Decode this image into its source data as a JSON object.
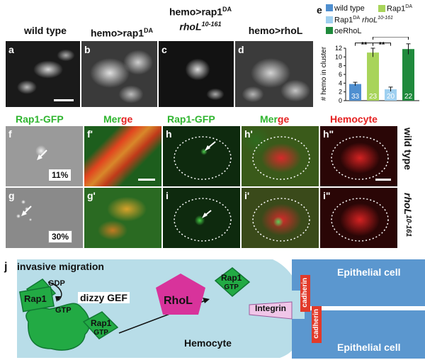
{
  "top_row": {
    "headers": [
      {
        "id": "wt",
        "text": "wild type"
      },
      {
        "id": "hemo_rap1",
        "text": "hemo>rap1",
        "sup": "DA"
      },
      {
        "id": "hemo_rap1_rhol_line1",
        "text": "hemo>rap1",
        "sup": "DA"
      },
      {
        "id": "hemo_rap1_rhol_line2",
        "text": "rhoL",
        "sup": "10-161"
      },
      {
        "id": "hemo_rhol",
        "text": "hemo>rhoL"
      }
    ],
    "panel_labels": [
      "a",
      "b",
      "c",
      "d"
    ]
  },
  "chart": {
    "panel_label": "e",
    "legend": [
      {
        "label": "wild type",
        "color": "#4f8fd0"
      },
      {
        "label": "Rap1",
        "sup": "DA",
        "color": "#a8d45a"
      },
      {
        "label": "Rap1",
        "sup": "DA",
        "italic": "rhoL",
        "sup2": "10-161",
        "color": "#9fd0f0"
      },
      {
        "label": "oeRhoL",
        "color": "#1f8a3c"
      }
    ],
    "significance": [
      "**",
      "**",
      "ns"
    ]
  },
  "chart_data": {
    "type": "bar",
    "categories": [
      "wild type",
      "Rap1DA",
      "Rap1DA rhoL10-161",
      "oeRhoL"
    ],
    "values": [
      3.8,
      11.0,
      2.6,
      11.8
    ],
    "errors": [
      0.4,
      1.0,
      0.5,
      1.2
    ],
    "n_labels": [
      "33",
      "23",
      "20",
      "22"
    ],
    "colors": [
      "#4f8fd0",
      "#a8d45a",
      "#9fd0f0",
      "#1f8a3c"
    ],
    "ylabel": "# hemo in cluster",
    "ylim": [
      0,
      12
    ],
    "yticks": [
      "0",
      "2",
      "4",
      "6",
      "8",
      "10",
      "12"
    ]
  },
  "middle": {
    "col_headers": {
      "rap1gfp_1": "Rap1-GFP",
      "merge_1a": "Mer",
      "merge_1b": "ge",
      "rap1gfp_2": "Rap1-GFP",
      "merge_2a": "Mer",
      "merge_2b": "ge",
      "hemocyte": "Hemocyte"
    },
    "panel_labels": [
      "f",
      "f'",
      "g",
      "g'",
      "h",
      "h'",
      "h\"",
      "i",
      "i'",
      "i\""
    ],
    "percentages": [
      "11%",
      "30%"
    ],
    "side_labels": {
      "wt": "wild type",
      "rhol": "rhoL",
      "rhol_sup": "10-161"
    }
  },
  "schematic": {
    "panel_label": "j",
    "title": "invasive migration",
    "rap1": "Rap1",
    "gdp": "GDP",
    "gtp": "GTP",
    "dizzy_gef": "dizzy GEF",
    "rap1_gtp_a": "Rap1",
    "gtp_a": "GTP",
    "rhol": "RhoL",
    "rap1_gtp_b": "Rap1",
    "gtp_b": "GTP",
    "integrin": "Integrin",
    "cadherin": "cadherin",
    "hemocyte": "Hemocyte",
    "epithelial_cell": "Epithelial cell"
  }
}
